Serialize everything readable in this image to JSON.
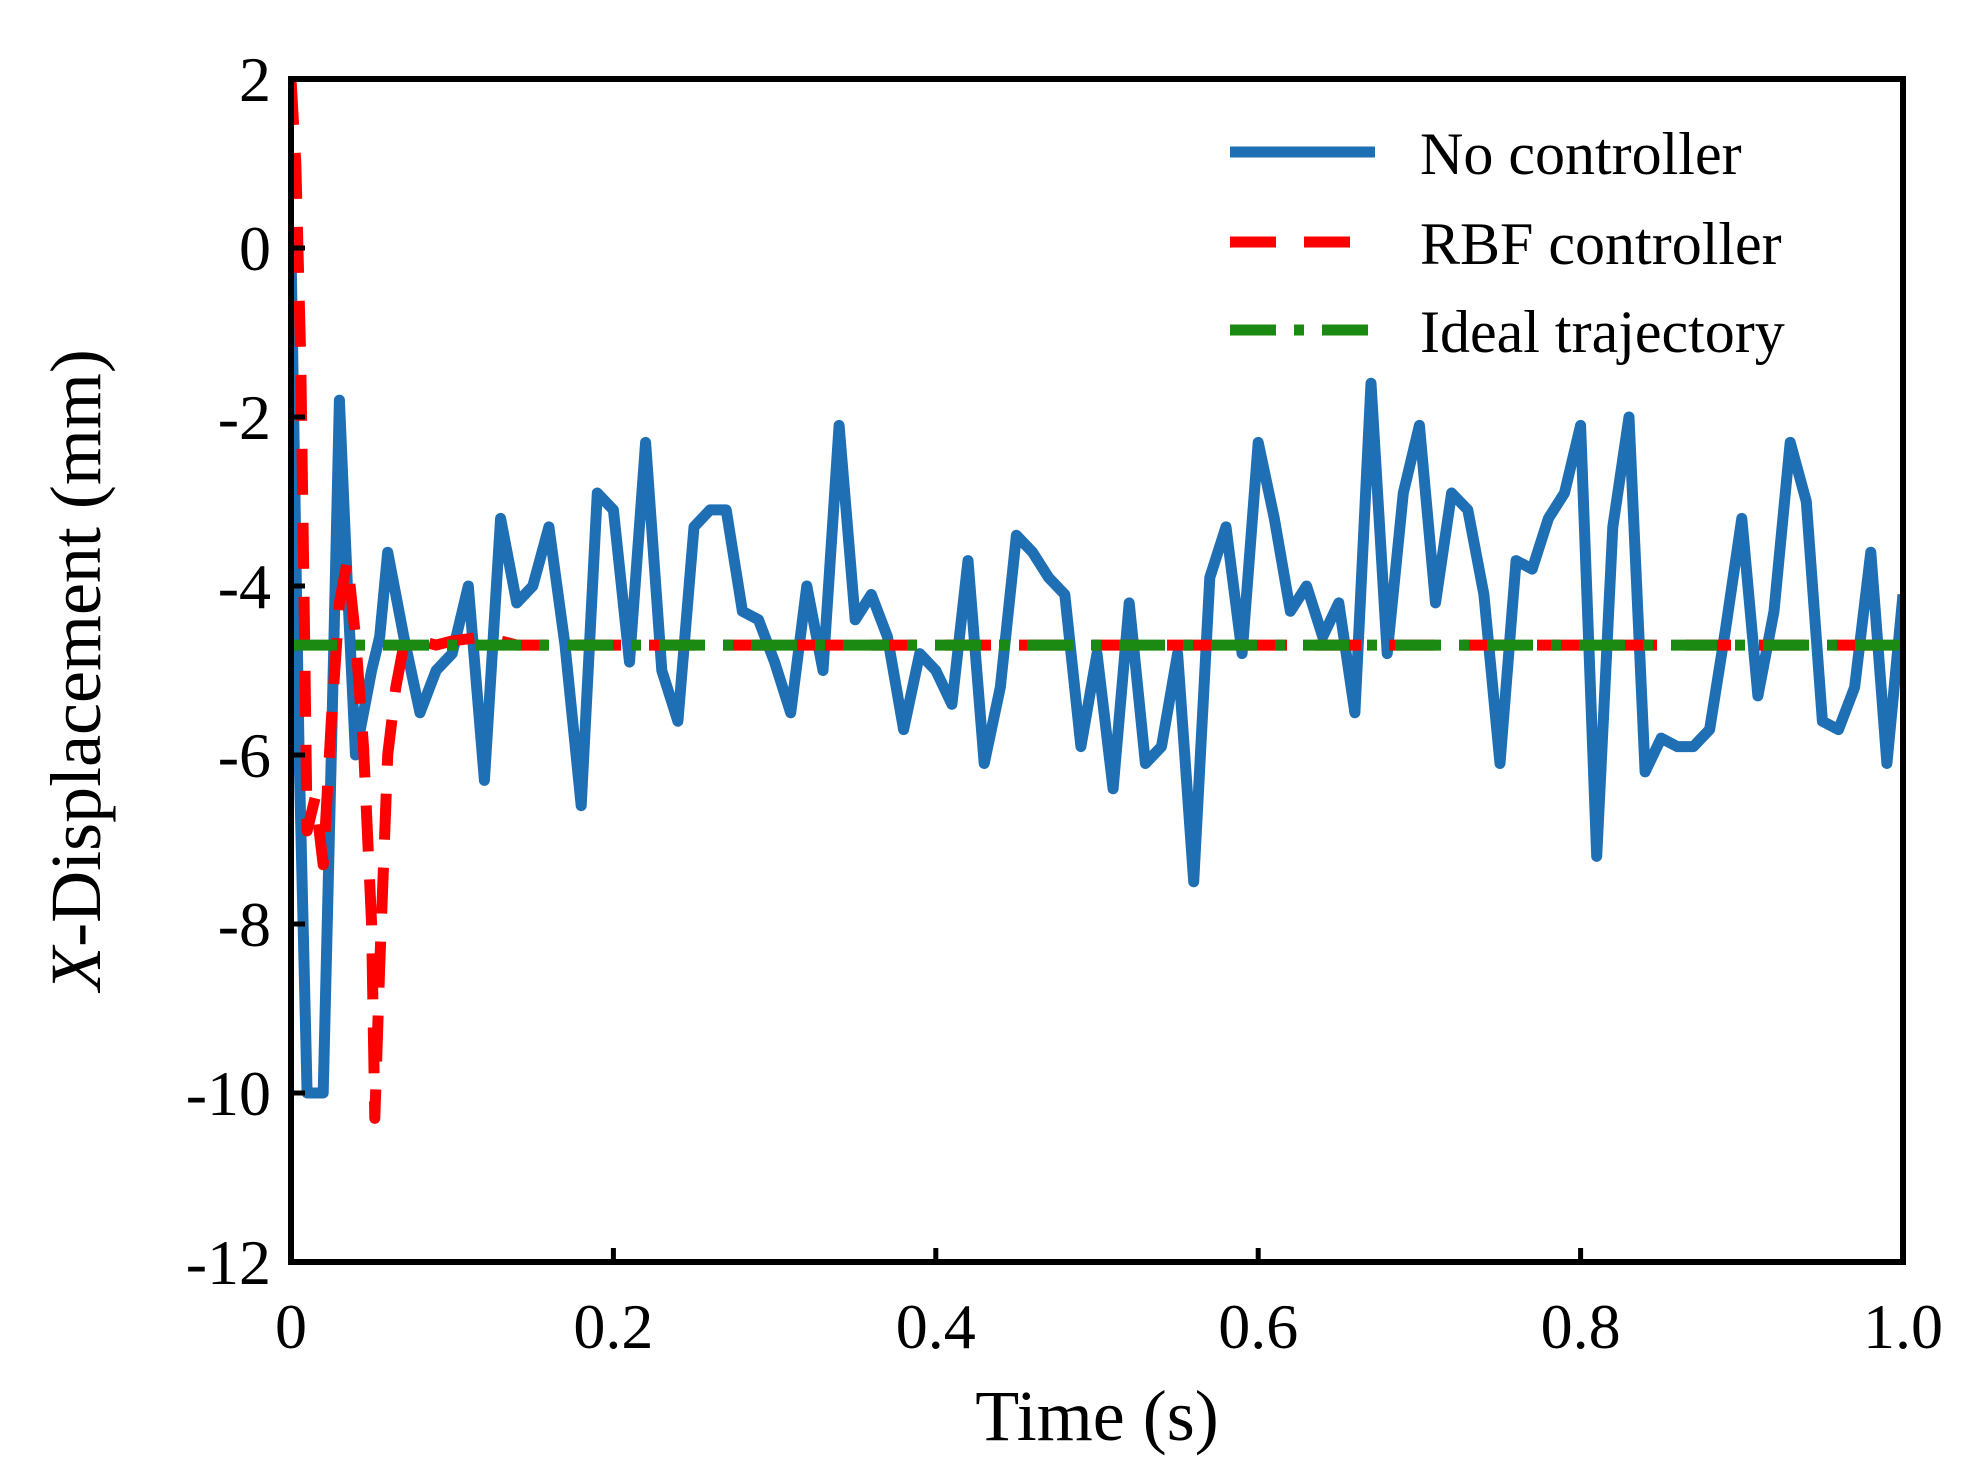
{
  "chart_data": {
    "type": "line",
    "title": "",
    "xlabel": "Time (s)",
    "ylabel_prefix": "X",
    "ylabel": "-Displacement (mm)",
    "xlim": [
      0,
      1.0
    ],
    "ylim": [
      -12,
      2
    ],
    "x_ticks": [
      0,
      0.2,
      0.4,
      0.6,
      0.8,
      1.0
    ],
    "x_tick_labels": [
      "0",
      "0.2",
      "0.4",
      "0.6",
      "0.8",
      "1.0"
    ],
    "y_ticks": [
      2,
      0,
      -2,
      -4,
      -6,
      -8,
      -10,
      -12
    ],
    "y_tick_labels": [
      "2",
      "0",
      "-2",
      "-4",
      "-6",
      "-8",
      "-10",
      "-12"
    ],
    "grid": false,
    "legend_position": "top-right",
    "series": [
      {
        "name": "No controller",
        "color": "#1f6fb4",
        "style": "solid",
        "points": [
          [
            0,
            0
          ],
          [
            0.005,
            -6
          ],
          [
            0.01,
            -10
          ],
          [
            0.015,
            -10
          ],
          [
            0.02,
            -10
          ],
          [
            0.025,
            -6
          ],
          [
            0.03,
            -1.8
          ],
          [
            0.035,
            -4
          ],
          [
            0.04,
            -6
          ],
          [
            0.045,
            -5.5
          ],
          [
            0.05,
            -5
          ],
          [
            0.055,
            -4.6
          ],
          [
            0.06,
            -3.6
          ],
          [
            0.07,
            -4.6
          ],
          [
            0.08,
            -5.5
          ],
          [
            0.09,
            -5
          ],
          [
            0.1,
            -4.8
          ],
          [
            0.11,
            -4
          ],
          [
            0.12,
            -6.3
          ],
          [
            0.13,
            -3.2
          ],
          [
            0.14,
            -4.2
          ],
          [
            0.15,
            -4
          ],
          [
            0.16,
            -3.3
          ],
          [
            0.17,
            -4.7
          ],
          [
            0.18,
            -6.6
          ],
          [
            0.19,
            -2.9
          ],
          [
            0.2,
            -3.1
          ],
          [
            0.21,
            -4.9
          ],
          [
            0.22,
            -2.3
          ],
          [
            0.23,
            -5
          ],
          [
            0.24,
            -5.6
          ],
          [
            0.25,
            -3.3
          ],
          [
            0.26,
            -3.1
          ],
          [
            0.27,
            -3.1
          ],
          [
            0.28,
            -4.3
          ],
          [
            0.29,
            -4.4
          ],
          [
            0.3,
            -4.9
          ],
          [
            0.31,
            -5.5
          ],
          [
            0.32,
            -4
          ],
          [
            0.33,
            -5
          ],
          [
            0.34,
            -2.1
          ],
          [
            0.35,
            -4.4
          ],
          [
            0.36,
            -4.1
          ],
          [
            0.37,
            -4.6
          ],
          [
            0.38,
            -5.7
          ],
          [
            0.39,
            -4.8
          ],
          [
            0.4,
            -5
          ],
          [
            0.41,
            -5.4
          ],
          [
            0.42,
            -3.7
          ],
          [
            0.43,
            -6.1
          ],
          [
            0.44,
            -5.2
          ],
          [
            0.45,
            -3.4
          ],
          [
            0.46,
            -3.6
          ],
          [
            0.47,
            -3.9
          ],
          [
            0.48,
            -4.1
          ],
          [
            0.49,
            -5.9
          ],
          [
            0.5,
            -4.8
          ],
          [
            0.51,
            -6.4
          ],
          [
            0.52,
            -4.2
          ],
          [
            0.53,
            -6.1
          ],
          [
            0.54,
            -5.9
          ],
          [
            0.55,
            -4.8
          ],
          [
            0.56,
            -7.5
          ],
          [
            0.57,
            -3.9
          ],
          [
            0.58,
            -3.3
          ],
          [
            0.59,
            -4.8
          ],
          [
            0.6,
            -2.3
          ],
          [
            0.61,
            -3.2
          ],
          [
            0.62,
            -4.3
          ],
          [
            0.63,
            -4
          ],
          [
            0.64,
            -4.6
          ],
          [
            0.65,
            -4.2
          ],
          [
            0.66,
            -5.5
          ],
          [
            0.67,
            -1.6
          ],
          [
            0.68,
            -4.8
          ],
          [
            0.69,
            -2.9
          ],
          [
            0.7,
            -2.1
          ],
          [
            0.71,
            -4.2
          ],
          [
            0.72,
            -2.9
          ],
          [
            0.73,
            -3.1
          ],
          [
            0.74,
            -4.1
          ],
          [
            0.75,
            -6.1
          ],
          [
            0.76,
            -3.7
          ],
          [
            0.77,
            -3.8
          ],
          [
            0.78,
            -3.2
          ],
          [
            0.79,
            -2.9
          ],
          [
            0.8,
            -2.1
          ],
          [
            0.81,
            -7.2
          ],
          [
            0.82,
            -3.3
          ],
          [
            0.83,
            -2
          ],
          [
            0.84,
            -6.2
          ],
          [
            0.85,
            -5.8
          ],
          [
            0.86,
            -5.9
          ],
          [
            0.87,
            -5.9
          ],
          [
            0.88,
            -5.7
          ],
          [
            0.89,
            -4.5
          ],
          [
            0.9,
            -3.2
          ],
          [
            0.91,
            -5.3
          ],
          [
            0.92,
            -4.3
          ],
          [
            0.93,
            -2.3
          ],
          [
            0.94,
            -3
          ],
          [
            0.95,
            -5.6
          ],
          [
            0.96,
            -5.7
          ],
          [
            0.97,
            -5.2
          ],
          [
            0.98,
            -3.6
          ],
          [
            0.99,
            -6.1
          ],
          [
            1.0,
            -4.1
          ]
        ]
      },
      {
        "name": "RBF controller",
        "color": "#ff0000",
        "style": "dashed",
        "points": [
          [
            0,
            2
          ],
          [
            0.003,
            1
          ],
          [
            0.006,
            -1.3
          ],
          [
            0.008,
            -4
          ],
          [
            0.01,
            -6.9
          ],
          [
            0.015,
            -6.5
          ],
          [
            0.02,
            -7.3
          ],
          [
            0.025,
            -5.6
          ],
          [
            0.03,
            -4.2
          ],
          [
            0.035,
            -3.7
          ],
          [
            0.04,
            -4.6
          ],
          [
            0.045,
            -5.9
          ],
          [
            0.05,
            -8
          ],
          [
            0.052,
            -10.3
          ],
          [
            0.055,
            -8.5
          ],
          [
            0.06,
            -6
          ],
          [
            0.065,
            -5.2
          ],
          [
            0.07,
            -4.7
          ],
          [
            0.08,
            -4.65
          ],
          [
            0.09,
            -4.7
          ],
          [
            0.1,
            -4.65
          ],
          [
            0.12,
            -4.6
          ],
          [
            0.14,
            -4.7
          ],
          [
            1.0,
            -4.7
          ]
        ]
      },
      {
        "name": "Ideal trajectory",
        "color": "#1a8a12",
        "style": "dashdot",
        "points": [
          [
            0,
            -4.7
          ],
          [
            1.0,
            -4.7
          ]
        ]
      }
    ]
  }
}
